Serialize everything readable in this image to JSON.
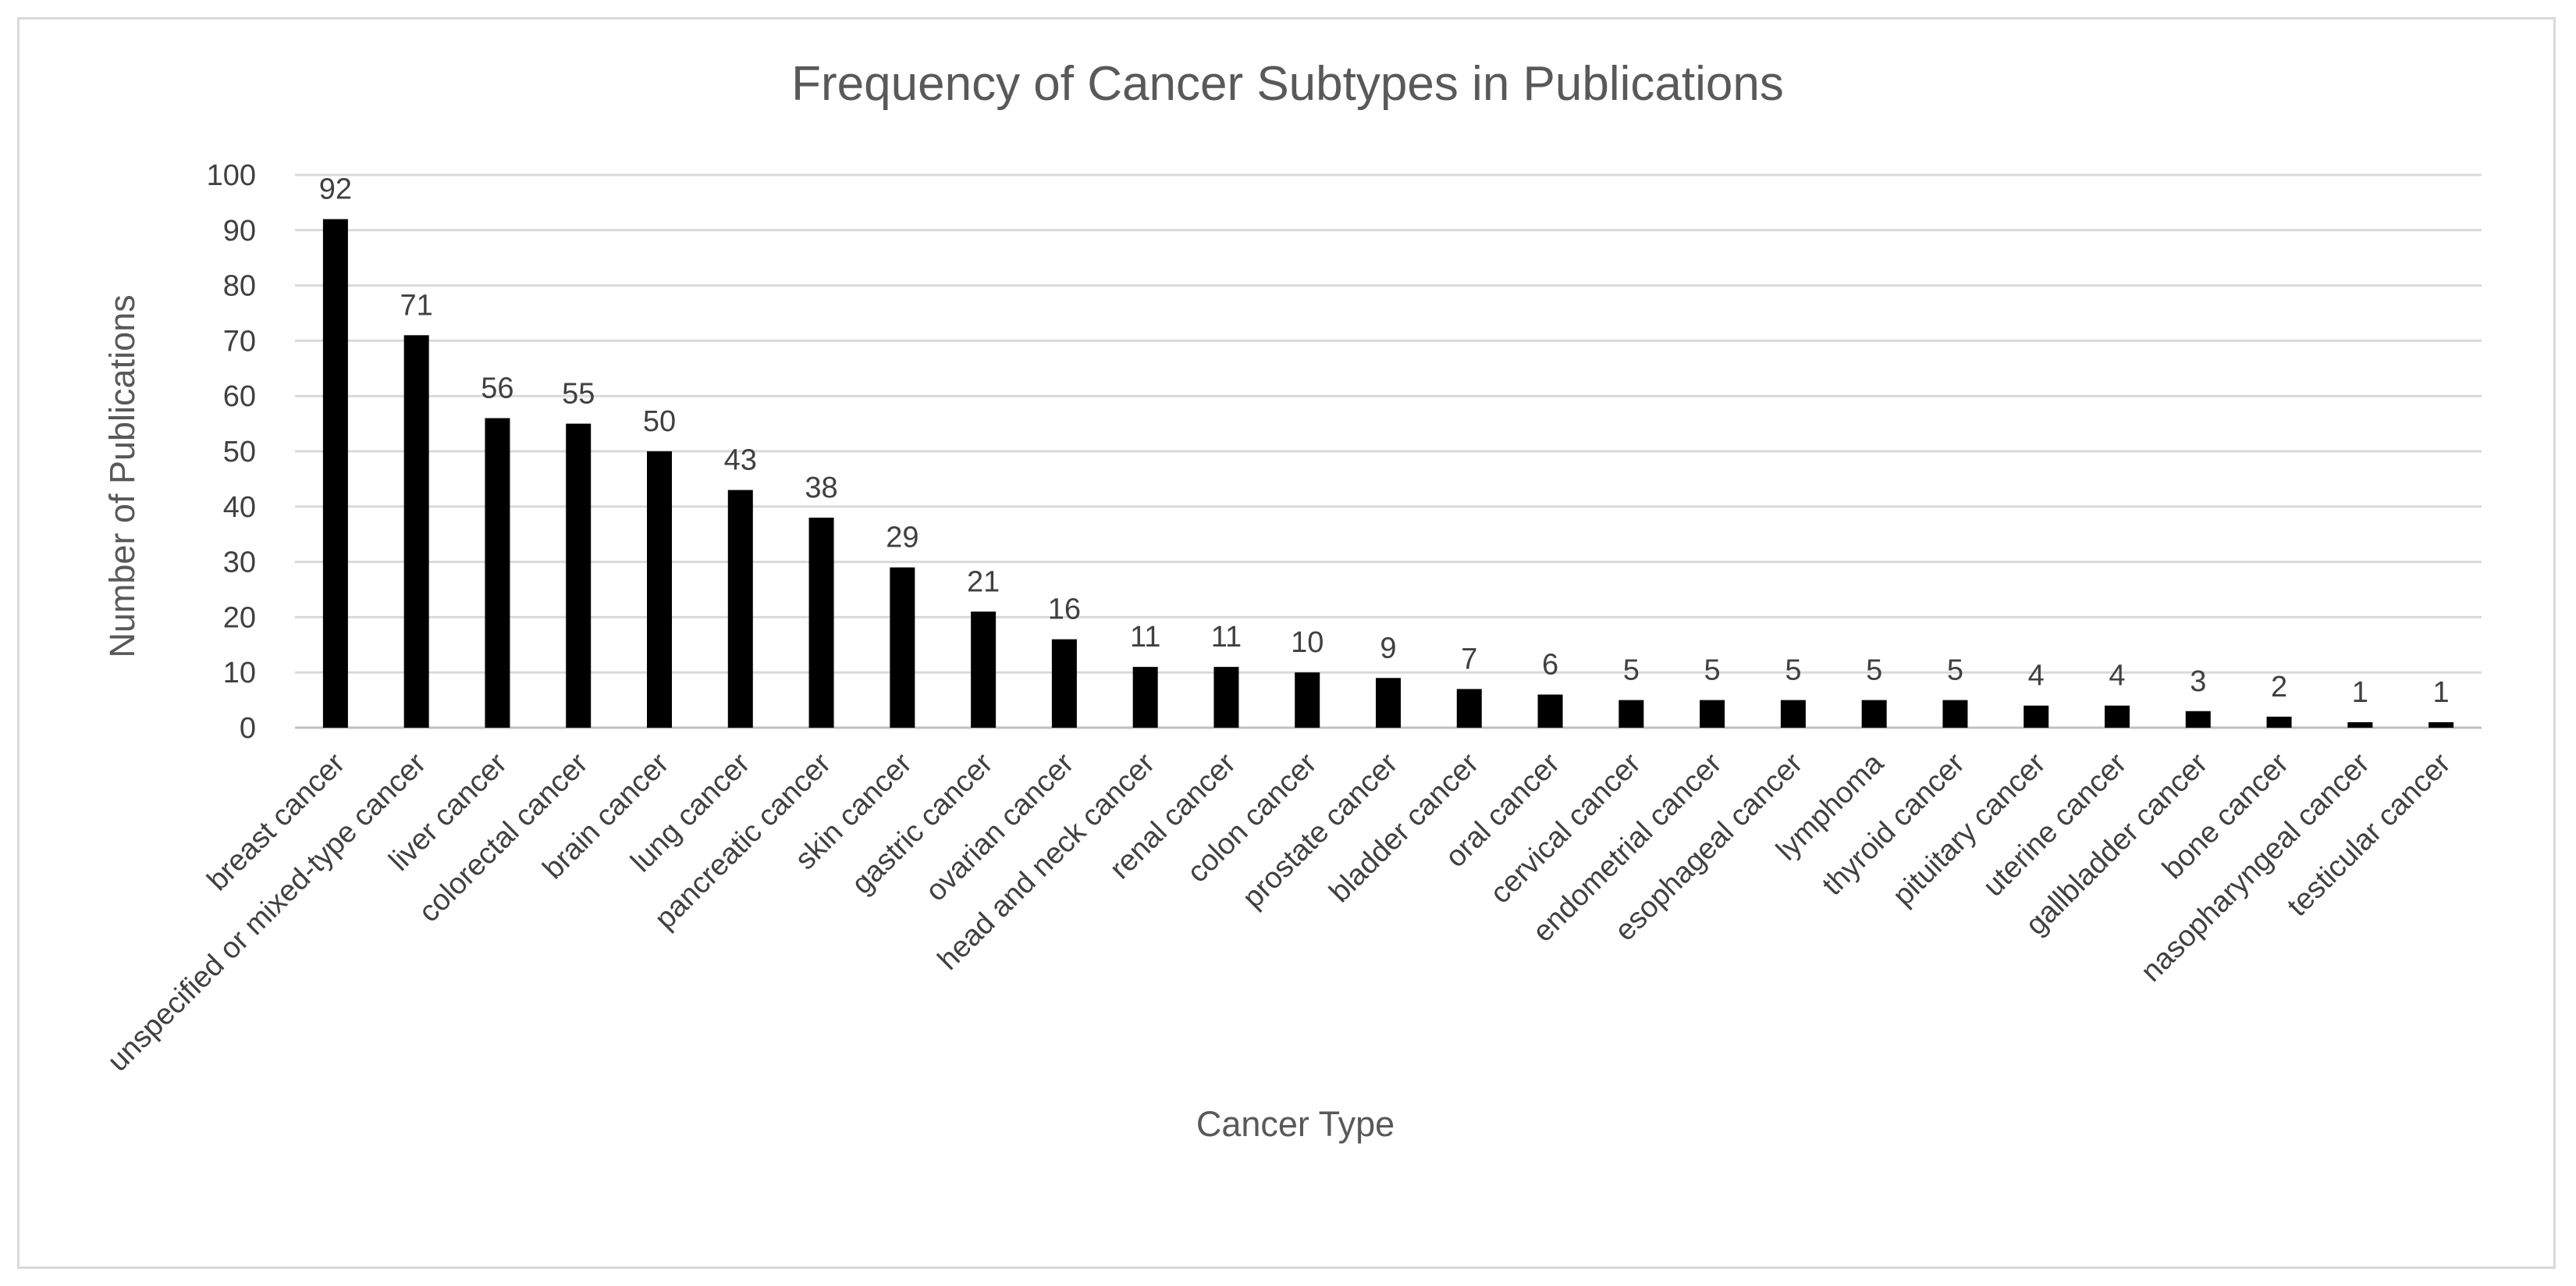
{
  "chart_data": {
    "type": "bar",
    "title": "Frequency of Cancer Subtypes in Publications",
    "xlabel": "Cancer Type",
    "ylabel": "Number of Publications",
    "ylim": [
      0,
      100
    ],
    "yticks": [
      0,
      10,
      20,
      30,
      40,
      50,
      60,
      70,
      80,
      90,
      100
    ],
    "grid": true,
    "legend": "none",
    "bar_color": "#000000",
    "categories": [
      "breast cancer",
      "unspecified or mixed-type cancer",
      "liver cancer",
      "colorectal cancer",
      "brain cancer",
      "lung cancer",
      "pancreatic cancer",
      "skin cancer",
      "gastric cancer",
      "ovarian cancer",
      "head and neck cancer",
      "renal cancer",
      "colon cancer",
      "prostate cancer",
      "bladder cancer",
      "oral cancer",
      "cervical cancer",
      "endometrial cancer",
      "esophageal cancer",
      "lymphoma",
      "thyroid cancer",
      "pituitary cancer",
      "uterine cancer",
      "gallbladder cancer",
      "bone cancer",
      "nasopharyngeal cancer",
      "testicular cancer"
    ],
    "values": [
      92,
      71,
      56,
      55,
      50,
      43,
      38,
      29,
      21,
      16,
      11,
      11,
      10,
      9,
      7,
      6,
      5,
      5,
      5,
      5,
      5,
      4,
      4,
      3,
      2,
      1,
      1
    ]
  }
}
